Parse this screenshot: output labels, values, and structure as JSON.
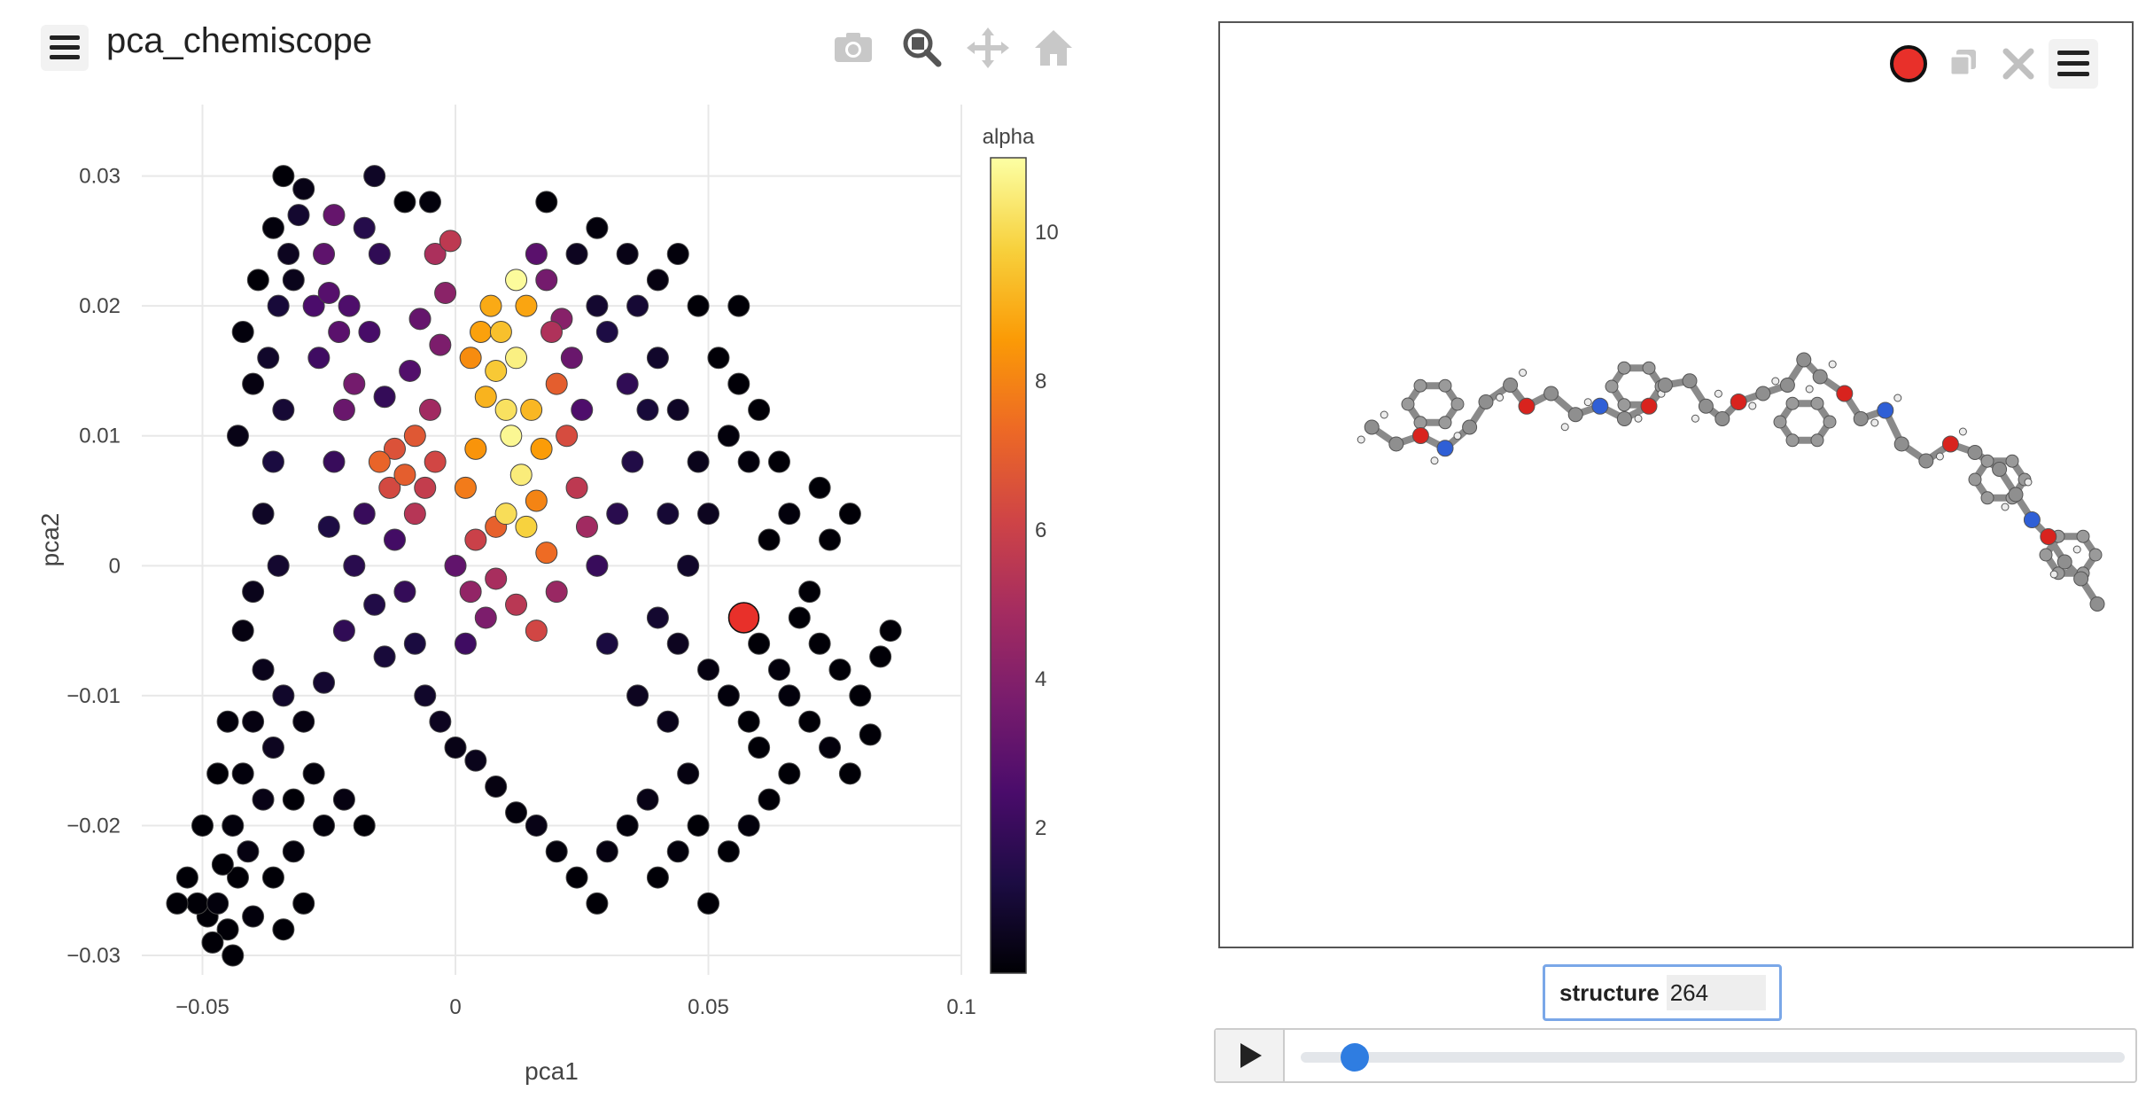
{
  "header": {
    "title": "pca_chemiscope"
  },
  "toolbar": {
    "icons": [
      "camera-icon",
      "zoom-icon",
      "pan-icon",
      "home-icon"
    ]
  },
  "chart_data": {
    "type": "scatter",
    "xlabel": "pca1",
    "ylabel": "pca2",
    "xlim": [
      -0.062,
      0.1
    ],
    "ylim": [
      -0.0315,
      0.0355
    ],
    "x_ticks": [
      {
        "v": -0.05,
        "label": "−0.05"
      },
      {
        "v": 0,
        "label": "0"
      },
      {
        "v": 0.05,
        "label": "0.05"
      },
      {
        "v": 0.1,
        "label": "0.1"
      }
    ],
    "y_ticks": [
      {
        "v": 0.03,
        "label": "0.03"
      },
      {
        "v": 0.02,
        "label": "0.02"
      },
      {
        "v": 0.01,
        "label": "0.01"
      },
      {
        "v": 0,
        "label": "0"
      },
      {
        "v": -0.01,
        "label": "−0.01"
      },
      {
        "v": -0.02,
        "label": "−0.02"
      },
      {
        "v": -0.03,
        "label": "−0.03"
      }
    ],
    "colorbar": {
      "title": "alpha",
      "range": [
        0.05,
        11
      ],
      "ticks": [
        {
          "v": 2,
          "label": "2"
        },
        {
          "v": 4,
          "label": "4"
        },
        {
          "v": 6,
          "label": "6"
        },
        {
          "v": 8,
          "label": "8"
        },
        {
          "v": 10,
          "label": "10"
        }
      ],
      "colorscale": [
        "#000004",
        "#1c0c43",
        "#4a0c6b",
        "#781c6d",
        "#a52c60",
        "#cf4446",
        "#ed6925",
        "#fb9b06",
        "#f7d13d",
        "#fcffa4"
      ]
    },
    "selected": {
      "x": 0.057,
      "y": -0.004,
      "color": "#e8302a"
    },
    "points": [
      [
        -0.045,
        -0.028,
        0.1
      ],
      [
        -0.047,
        -0.026,
        0.2
      ],
      [
        -0.043,
        -0.024,
        0.1
      ],
      [
        -0.049,
        -0.027,
        0.1
      ],
      [
        -0.041,
        -0.022,
        0.3
      ],
      [
        -0.044,
        -0.02,
        0.2
      ],
      [
        -0.046,
        -0.023,
        0.1
      ],
      [
        -0.051,
        -0.026,
        0.1
      ],
      [
        -0.038,
        -0.018,
        0.4
      ],
      [
        -0.042,
        -0.016,
        0.2
      ],
      [
        -0.036,
        -0.014,
        0.6
      ],
      [
        -0.04,
        -0.012,
        0.3
      ],
      [
        -0.034,
        -0.01,
        0.8
      ],
      [
        -0.038,
        -0.008,
        0.5
      ],
      [
        -0.03,
        -0.012,
        0.3
      ],
      [
        -0.028,
        -0.016,
        0.2
      ],
      [
        -0.032,
        -0.018,
        0.1
      ],
      [
        -0.026,
        -0.02,
        0.2
      ],
      [
        -0.022,
        -0.018,
        0.3
      ],
      [
        -0.018,
        -0.02,
        0.1
      ],
      [
        -0.035,
        0.0,
        0.9
      ],
      [
        -0.038,
        0.004,
        0.7
      ],
      [
        -0.036,
        0.008,
        1.2
      ],
      [
        -0.034,
        0.012,
        1.0
      ],
      [
        -0.037,
        0.016,
        0.8
      ],
      [
        -0.035,
        0.02,
        1.1
      ],
      [
        -0.033,
        0.024,
        0.6
      ],
      [
        -0.031,
        0.027,
        0.9
      ],
      [
        -0.03,
        0.029,
        0.4
      ],
      [
        -0.032,
        0.022,
        0.5
      ],
      [
        -0.028,
        0.02,
        2.5
      ],
      [
        -0.026,
        0.024,
        3.0
      ],
      [
        -0.024,
        0.027,
        3.2
      ],
      [
        -0.025,
        0.021,
        2.8
      ],
      [
        -0.027,
        0.016,
        2.2
      ],
      [
        -0.023,
        0.018,
        2.9
      ],
      [
        -0.022,
        0.012,
        3.3
      ],
      [
        -0.024,
        0.008,
        2.0
      ],
      [
        -0.02,
        0.014,
        3.6
      ],
      [
        -0.021,
        0.02,
        2.6
      ],
      [
        -0.018,
        0.026,
        1.5
      ],
      [
        -0.016,
        0.03,
        0.7
      ],
      [
        -0.015,
        0.024,
        1.8
      ],
      [
        -0.017,
        0.018,
        2.4
      ],
      [
        -0.014,
        0.013,
        1.9
      ],
      [
        -0.012,
        0.009,
        6.6
      ],
      [
        -0.015,
        0.008,
        7.2
      ],
      [
        -0.01,
        0.007,
        7.0
      ],
      [
        -0.008,
        0.01,
        6.8
      ],
      [
        -0.013,
        0.006,
        6.3
      ],
      [
        -0.006,
        0.006,
        5.8
      ],
      [
        -0.004,
        0.008,
        6.2
      ],
      [
        -0.008,
        0.004,
        5.4
      ],
      [
        -0.005,
        0.012,
        4.8
      ],
      [
        -0.003,
        0.017,
        3.8
      ],
      [
        -0.002,
        0.021,
        4.2
      ],
      [
        -0.004,
        0.024,
        5.1
      ],
      [
        -0.001,
        0.025,
        5.6
      ],
      [
        -0.007,
        0.019,
        3.2
      ],
      [
        -0.009,
        0.015,
        2.7
      ],
      [
        0.003,
        0.016,
        8.2
      ],
      [
        0.005,
        0.018,
        8.7
      ],
      [
        0.006,
        0.013,
        9.1
      ],
      [
        0.008,
        0.015,
        9.6
      ],
      [
        0.01,
        0.012,
        10.2
      ],
      [
        0.012,
        0.016,
        10.6
      ],
      [
        0.011,
        0.01,
        10.8
      ],
      [
        0.013,
        0.007,
        10.5
      ],
      [
        0.01,
        0.004,
        10.1
      ],
      [
        0.014,
        0.003,
        9.8
      ],
      [
        0.009,
        0.018,
        9.4
      ],
      [
        0.007,
        0.02,
        8.9
      ],
      [
        0.004,
        0.009,
        8.4
      ],
      [
        0.002,
        0.006,
        7.8
      ],
      [
        0.015,
        0.012,
        9.2
      ],
      [
        0.017,
        0.009,
        8.6
      ],
      [
        0.016,
        0.005,
        8.0
      ],
      [
        0.018,
        0.001,
        7.4
      ],
      [
        0.014,
        0.02,
        8.8
      ],
      [
        0.012,
        0.022,
        10.9
      ],
      [
        0.02,
        0.014,
        7.0
      ],
      [
        0.022,
        0.01,
        6.4
      ],
      [
        0.024,
        0.006,
        5.6
      ],
      [
        0.026,
        0.003,
        4.8
      ],
      [
        0.019,
        0.018,
        5.2
      ],
      [
        0.021,
        0.019,
        4.1
      ],
      [
        0.018,
        0.022,
        3.6
      ],
      [
        0.016,
        0.024,
        2.9
      ],
      [
        0.023,
        0.016,
        3.3
      ],
      [
        0.025,
        0.012,
        2.6
      ],
      [
        0.0,
        0.0,
        3.1
      ],
      [
        0.003,
        -0.002,
        4.4
      ],
      [
        0.006,
        -0.004,
        3.8
      ],
      [
        0.008,
        -0.001,
        5.0
      ],
      [
        0.012,
        -0.003,
        5.5
      ],
      [
        0.016,
        -0.005,
        6.2
      ],
      [
        0.02,
        -0.002,
        4.6
      ],
      [
        0.004,
        0.002,
        6.0
      ],
      [
        0.008,
        0.003,
        7.1
      ],
      [
        0.002,
        -0.006,
        2.2
      ],
      [
        -0.02,
        0.0,
        1.6
      ],
      [
        -0.018,
        0.004,
        2.0
      ],
      [
        -0.016,
        -0.003,
        1.4
      ],
      [
        -0.014,
        -0.007,
        1.1
      ],
      [
        -0.022,
        -0.005,
        1.8
      ],
      [
        -0.025,
        0.003,
        1.3
      ],
      [
        -0.026,
        -0.009,
        0.9
      ],
      [
        -0.012,
        0.002,
        2.3
      ],
      [
        -0.01,
        -0.002,
        1.9
      ],
      [
        -0.008,
        -0.006,
        1.2
      ],
      [
        -0.006,
        -0.01,
        0.8
      ],
      [
        -0.003,
        -0.012,
        0.6
      ],
      [
        0.0,
        -0.014,
        0.4
      ],
      [
        0.004,
        -0.015,
        0.5
      ],
      [
        0.008,
        -0.017,
        0.3
      ],
      [
        0.012,
        -0.019,
        0.2
      ],
      [
        0.016,
        -0.02,
        0.4
      ],
      [
        0.02,
        -0.022,
        0.2
      ],
      [
        0.024,
        -0.024,
        0.1
      ],
      [
        0.028,
        -0.026,
        0.1
      ],
      [
        0.03,
        -0.022,
        0.3
      ],
      [
        0.034,
        -0.02,
        0.2
      ],
      [
        0.038,
        -0.018,
        0.4
      ],
      [
        0.04,
        -0.024,
        0.1
      ],
      [
        0.044,
        -0.022,
        0.2
      ],
      [
        0.048,
        -0.02,
        0.1
      ],
      [
        0.05,
        -0.026,
        0.1
      ],
      [
        0.046,
        -0.016,
        0.3
      ],
      [
        0.042,
        -0.012,
        0.5
      ],
      [
        0.036,
        -0.01,
        0.6
      ],
      [
        0.03,
        -0.006,
        1.2
      ],
      [
        0.028,
        0.0,
        2.0
      ],
      [
        0.032,
        0.004,
        1.6
      ],
      [
        0.035,
        0.008,
        1.4
      ],
      [
        0.038,
        0.012,
        1.1
      ],
      [
        0.034,
        0.014,
        1.8
      ],
      [
        0.03,
        0.018,
        1.3
      ],
      [
        0.028,
        0.02,
        0.9
      ],
      [
        0.036,
        0.02,
        1.0
      ],
      [
        0.04,
        0.016,
        0.8
      ],
      [
        0.044,
        0.012,
        0.7
      ],
      [
        0.048,
        0.008,
        0.5
      ],
      [
        0.05,
        0.004,
        0.6
      ],
      [
        0.046,
        0.0,
        0.8
      ],
      [
        0.042,
        0.004,
        1.0
      ],
      [
        0.04,
        -0.004,
        0.9
      ],
      [
        0.044,
        -0.006,
        0.6
      ],
      [
        0.05,
        -0.008,
        0.3
      ],
      [
        0.054,
        -0.01,
        0.2
      ],
      [
        0.058,
        -0.012,
        0.1
      ],
      [
        0.06,
        -0.006,
        0.1
      ],
      [
        0.064,
        -0.008,
        0.2
      ],
      [
        0.068,
        -0.004,
        0.1
      ],
      [
        0.072,
        -0.006,
        0.1
      ],
      [
        0.076,
        -0.008,
        0.1
      ],
      [
        0.08,
        -0.01,
        0.1
      ],
      [
        0.084,
        -0.007,
        0.1
      ],
      [
        0.086,
        -0.005,
        0.1
      ],
      [
        0.082,
        -0.013,
        0.1
      ],
      [
        0.078,
        -0.016,
        0.1
      ],
      [
        0.074,
        -0.014,
        0.2
      ],
      [
        0.07,
        -0.012,
        0.1
      ],
      [
        0.066,
        -0.016,
        0.1
      ],
      [
        0.062,
        -0.018,
        0.1
      ],
      [
        0.058,
        -0.02,
        0.2
      ],
      [
        0.054,
        -0.022,
        0.1
      ],
      [
        0.06,
        -0.014,
        0.1
      ],
      [
        0.066,
        -0.01,
        0.2
      ],
      [
        0.07,
        -0.002,
        0.1
      ],
      [
        0.074,
        0.002,
        0.1
      ],
      [
        0.078,
        0.004,
        0.1
      ],
      [
        0.072,
        0.006,
        0.1
      ],
      [
        0.066,
        0.004,
        0.2
      ],
      [
        0.062,
        0.002,
        0.1
      ],
      [
        0.064,
        0.008,
        0.1
      ],
      [
        0.058,
        0.008,
        0.2
      ],
      [
        0.054,
        0.01,
        0.2
      ],
      [
        0.06,
        0.012,
        0.1
      ],
      [
        0.056,
        0.014,
        0.1
      ],
      [
        0.052,
        0.016,
        0.1
      ],
      [
        0.048,
        0.02,
        0.1
      ],
      [
        0.044,
        0.024,
        0.2
      ],
      [
        0.04,
        0.022,
        0.3
      ],
      [
        0.034,
        0.024,
        0.4
      ],
      [
        0.028,
        0.026,
        0.2
      ],
      [
        0.018,
        0.028,
        0.1
      ],
      [
        0.024,
        0.024,
        0.6
      ],
      [
        0.056,
        0.02,
        0.1
      ],
      [
        -0.01,
        0.028,
        0.1
      ],
      [
        -0.005,
        0.028,
        0.2
      ],
      [
        -0.04,
        0.014,
        0.3
      ],
      [
        -0.042,
        0.018,
        0.2
      ],
      [
        -0.039,
        0.022,
        0.1
      ],
      [
        -0.036,
        0.026,
        0.2
      ],
      [
        -0.034,
        0.03,
        0.1
      ],
      [
        -0.043,
        0.01,
        0.4
      ],
      [
        -0.04,
        -0.002,
        0.5
      ],
      [
        -0.042,
        -0.005,
        0.3
      ],
      [
        -0.045,
        -0.012,
        0.2
      ],
      [
        -0.047,
        -0.016,
        0.1
      ],
      [
        -0.05,
        -0.02,
        0.1
      ],
      [
        -0.053,
        -0.024,
        0.1
      ],
      [
        -0.048,
        -0.029,
        0.1
      ],
      [
        -0.044,
        -0.03,
        0.1
      ],
      [
        -0.04,
        -0.027,
        0.2
      ],
      [
        -0.036,
        -0.024,
        0.1
      ],
      [
        -0.032,
        -0.022,
        0.2
      ],
      [
        -0.03,
        -0.026,
        0.1
      ],
      [
        -0.034,
        -0.028,
        0.1
      ],
      [
        -0.055,
        -0.026,
        0.1
      ]
    ]
  },
  "viewer": {
    "tools": [
      "record-icon",
      "duplicate-icon",
      "close-icon",
      "menu-icon"
    ],
    "record_color": "#e8302a"
  },
  "structure": {
    "label": "structure",
    "value": "264"
  },
  "player": {
    "position": 0.05
  }
}
